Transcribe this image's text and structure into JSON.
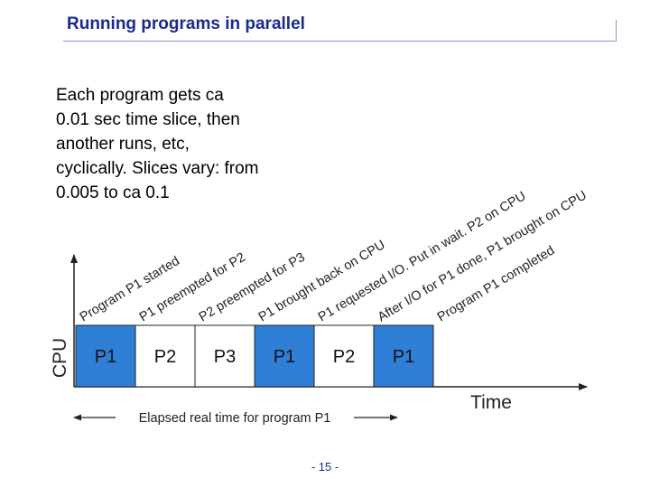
{
  "title": "Running programs in parallel",
  "body_lines": [
    "Each program gets ca",
    "0.01 sec time slice, then",
    "another runs, etc,",
    "cyclically. Slices vary: from",
    "0.005 to ca 0.1"
  ],
  "cpu_label": "CPU",
  "time_label": "Time",
  "elapsed_label": "Elapsed real time for program P1",
  "page_number": "- 15 -",
  "colors": {
    "p1": "#2f7fd6",
    "other": "#ffffff",
    "title": "#1a2a8c"
  },
  "slices": [
    {
      "label": "P1",
      "is_p1": true
    },
    {
      "label": "P2",
      "is_p1": false
    },
    {
      "label": "P3",
      "is_p1": false
    },
    {
      "label": "P1",
      "is_p1": true
    },
    {
      "label": "P2",
      "is_p1": false
    },
    {
      "label": "P1",
      "is_p1": true
    }
  ],
  "events": [
    {
      "lines": [
        "Program P1 started"
      ]
    },
    {
      "lines": [
        "P1 preempted for P2"
      ]
    },
    {
      "lines": [
        "P2 preempted for P3"
      ]
    },
    {
      "lines": [
        "P1 brought back on CPU"
      ]
    },
    {
      "lines": [
        "P1 requested I/O. Put in wait. P2 on CPU"
      ]
    },
    {
      "lines": [
        "After I/O for P1 done, P1 brought on CPU"
      ]
    },
    {
      "lines": [
        "Program P1 completed"
      ]
    }
  ]
}
